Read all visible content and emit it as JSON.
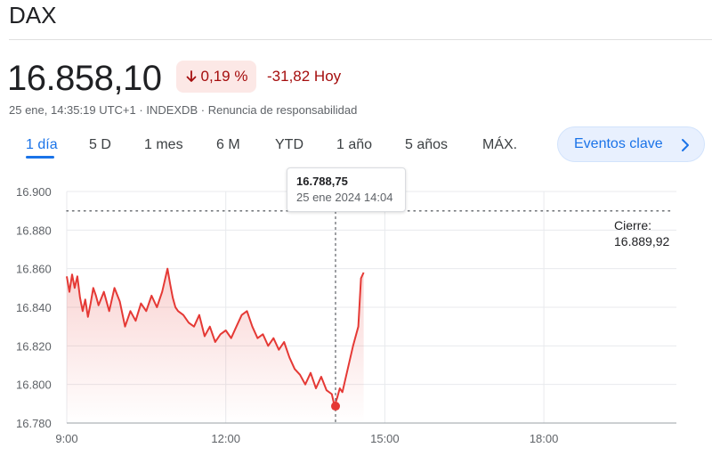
{
  "header": {
    "title": "DAX"
  },
  "quote": {
    "price": "16.858,10",
    "change_pct": "0,19 %",
    "change_abs": "-31,82 Hoy",
    "timestamp": "25 ene, 14:35:19 UTC+1",
    "exchange": "INDEXDB",
    "disclaimer": "Renuncia de responsabilidad"
  },
  "colors": {
    "down": "#a50e0e",
    "line": "#e53935",
    "accent": "#1a73e8"
  },
  "tabs": [
    {
      "label": "1 día",
      "active": true
    },
    {
      "label": "5 D"
    },
    {
      "label": "1 mes"
    },
    {
      "label": "6 M"
    },
    {
      "label": "YTD"
    },
    {
      "label": "1 año"
    },
    {
      "label": "5 años"
    },
    {
      "label": "MÁX."
    }
  ],
  "events_button": {
    "label": "Eventos clave"
  },
  "tooltip": {
    "value": "16.788,75",
    "date": "25 ene 2024 14:04"
  },
  "previous_close": {
    "label": "Cierre:",
    "value": "16.889,92"
  },
  "chart_data": {
    "type": "line",
    "x_unit": "time of day (hours)",
    "xlim": [
      9,
      20.5
    ],
    "ylim": [
      16780,
      16900
    ],
    "x_ticks": [
      9,
      12,
      15,
      18
    ],
    "x_tick_labels": [
      "9:00",
      "12:00",
      "15:00",
      "18:00"
    ],
    "y_ticks": [
      16780,
      16800,
      16820,
      16840,
      16860,
      16880,
      16900
    ],
    "y_tick_labels": [
      "16.780",
      "16.800",
      "16.820",
      "16.840",
      "16.860",
      "16.880",
      "16.900"
    ],
    "grid": true,
    "reference_line": {
      "value": 16889.92
    },
    "hover_point": {
      "x": 14.07,
      "y": 16788.75
    },
    "series": [
      {
        "x": [
          9.0,
          9.05,
          9.1,
          9.15,
          9.2,
          9.25,
          9.3,
          9.35,
          9.4,
          9.45,
          9.5,
          9.55,
          9.6,
          9.7,
          9.8,
          9.9,
          10.0,
          10.1,
          10.2,
          10.3,
          10.4,
          10.5,
          10.6,
          10.7,
          10.8,
          10.9,
          10.95,
          11.0,
          11.05,
          11.1,
          11.2,
          11.3,
          11.4,
          11.5,
          11.6,
          11.7,
          11.8,
          11.9,
          12.0,
          12.1,
          12.2,
          12.3,
          12.4,
          12.5,
          12.6,
          12.7,
          12.8,
          12.9,
          13.0,
          13.1,
          13.2,
          13.3,
          13.4,
          13.5,
          13.6,
          13.7,
          13.8,
          13.9,
          14.0,
          14.05,
          14.1,
          14.15,
          14.2,
          14.3,
          14.4,
          14.5,
          14.55,
          14.6
        ],
        "y": [
          16856,
          16848,
          16857,
          16850,
          16856,
          16845,
          16838,
          16844,
          16835,
          16842,
          16850,
          16846,
          16841,
          16848,
          16838,
          16850,
          16843,
          16830,
          16838,
          16833,
          16842,
          16838,
          16846,
          16840,
          16848,
          16860,
          16852,
          16845,
          16840,
          16838,
          16836,
          16832,
          16830,
          16836,
          16825,
          16830,
          16822,
          16826,
          16828,
          16824,
          16830,
          16836,
          16838,
          16830,
          16824,
          16826,
          16820,
          16824,
          16818,
          16822,
          16814,
          16808,
          16805,
          16800,
          16806,
          16798,
          16804,
          16797,
          16795,
          16789,
          16793,
          16798,
          16796,
          16808,
          16820,
          16830,
          16855,
          16858
        ]
      }
    ]
  }
}
